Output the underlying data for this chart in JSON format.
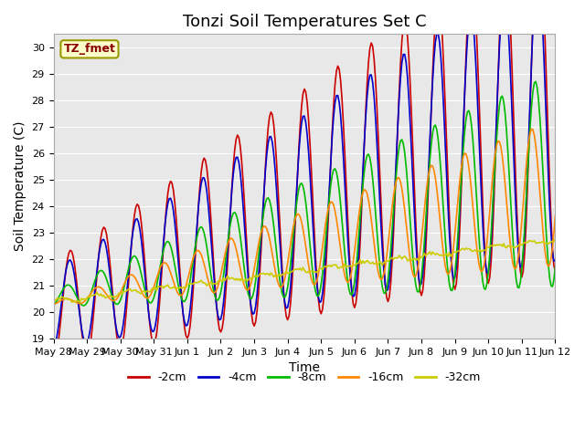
{
  "title": "Tonzi Soil Temperatures Set C",
  "xlabel": "Time",
  "ylabel": "Soil Temperature (C)",
  "ylim": [
    19.0,
    30.5
  ],
  "yticks": [
    19.0,
    20.0,
    21.0,
    22.0,
    23.0,
    24.0,
    25.0,
    26.0,
    27.0,
    28.0,
    29.0,
    30.0
  ],
  "plot_bg_color": "#e8e8e8",
  "fig_bg_color": "#ffffff",
  "label_box_text": "TZ_fmet",
  "label_box_facecolor": "#ffffcc",
  "label_box_edgecolor": "#999900",
  "label_box_textcolor": "#880000",
  "series": [
    {
      "label": "-2cm",
      "color": "#cc0000",
      "linewidth": 1.2
    },
    {
      "label": "-4cm",
      "color": "#0000cc",
      "linewidth": 1.2
    },
    {
      "label": "-8cm",
      "color": "#00bb00",
      "linewidth": 1.2
    },
    {
      "label": "-16cm",
      "color": "#ff8800",
      "linewidth": 1.2
    },
    {
      "label": "-32cm",
      "color": "#cccc00",
      "linewidth": 1.2
    }
  ],
  "xtick_labels": [
    "May 28",
    "May 29",
    "May 30",
    "May 31",
    "Jun 1",
    "Jun 2",
    "Jun 3",
    "Jun 4",
    "Jun 5",
    "Jun 6",
    "Jun 7",
    "Jun 8",
    "Jun 9",
    "Jun 10",
    "Jun 11",
    "Jun 12"
  ],
  "title_fontsize": 13,
  "axis_label_fontsize": 10,
  "tick_fontsize": 8,
  "legend_fontsize": 9,
  "grid_color": "#ffffff",
  "grid_linewidth": 0.8
}
